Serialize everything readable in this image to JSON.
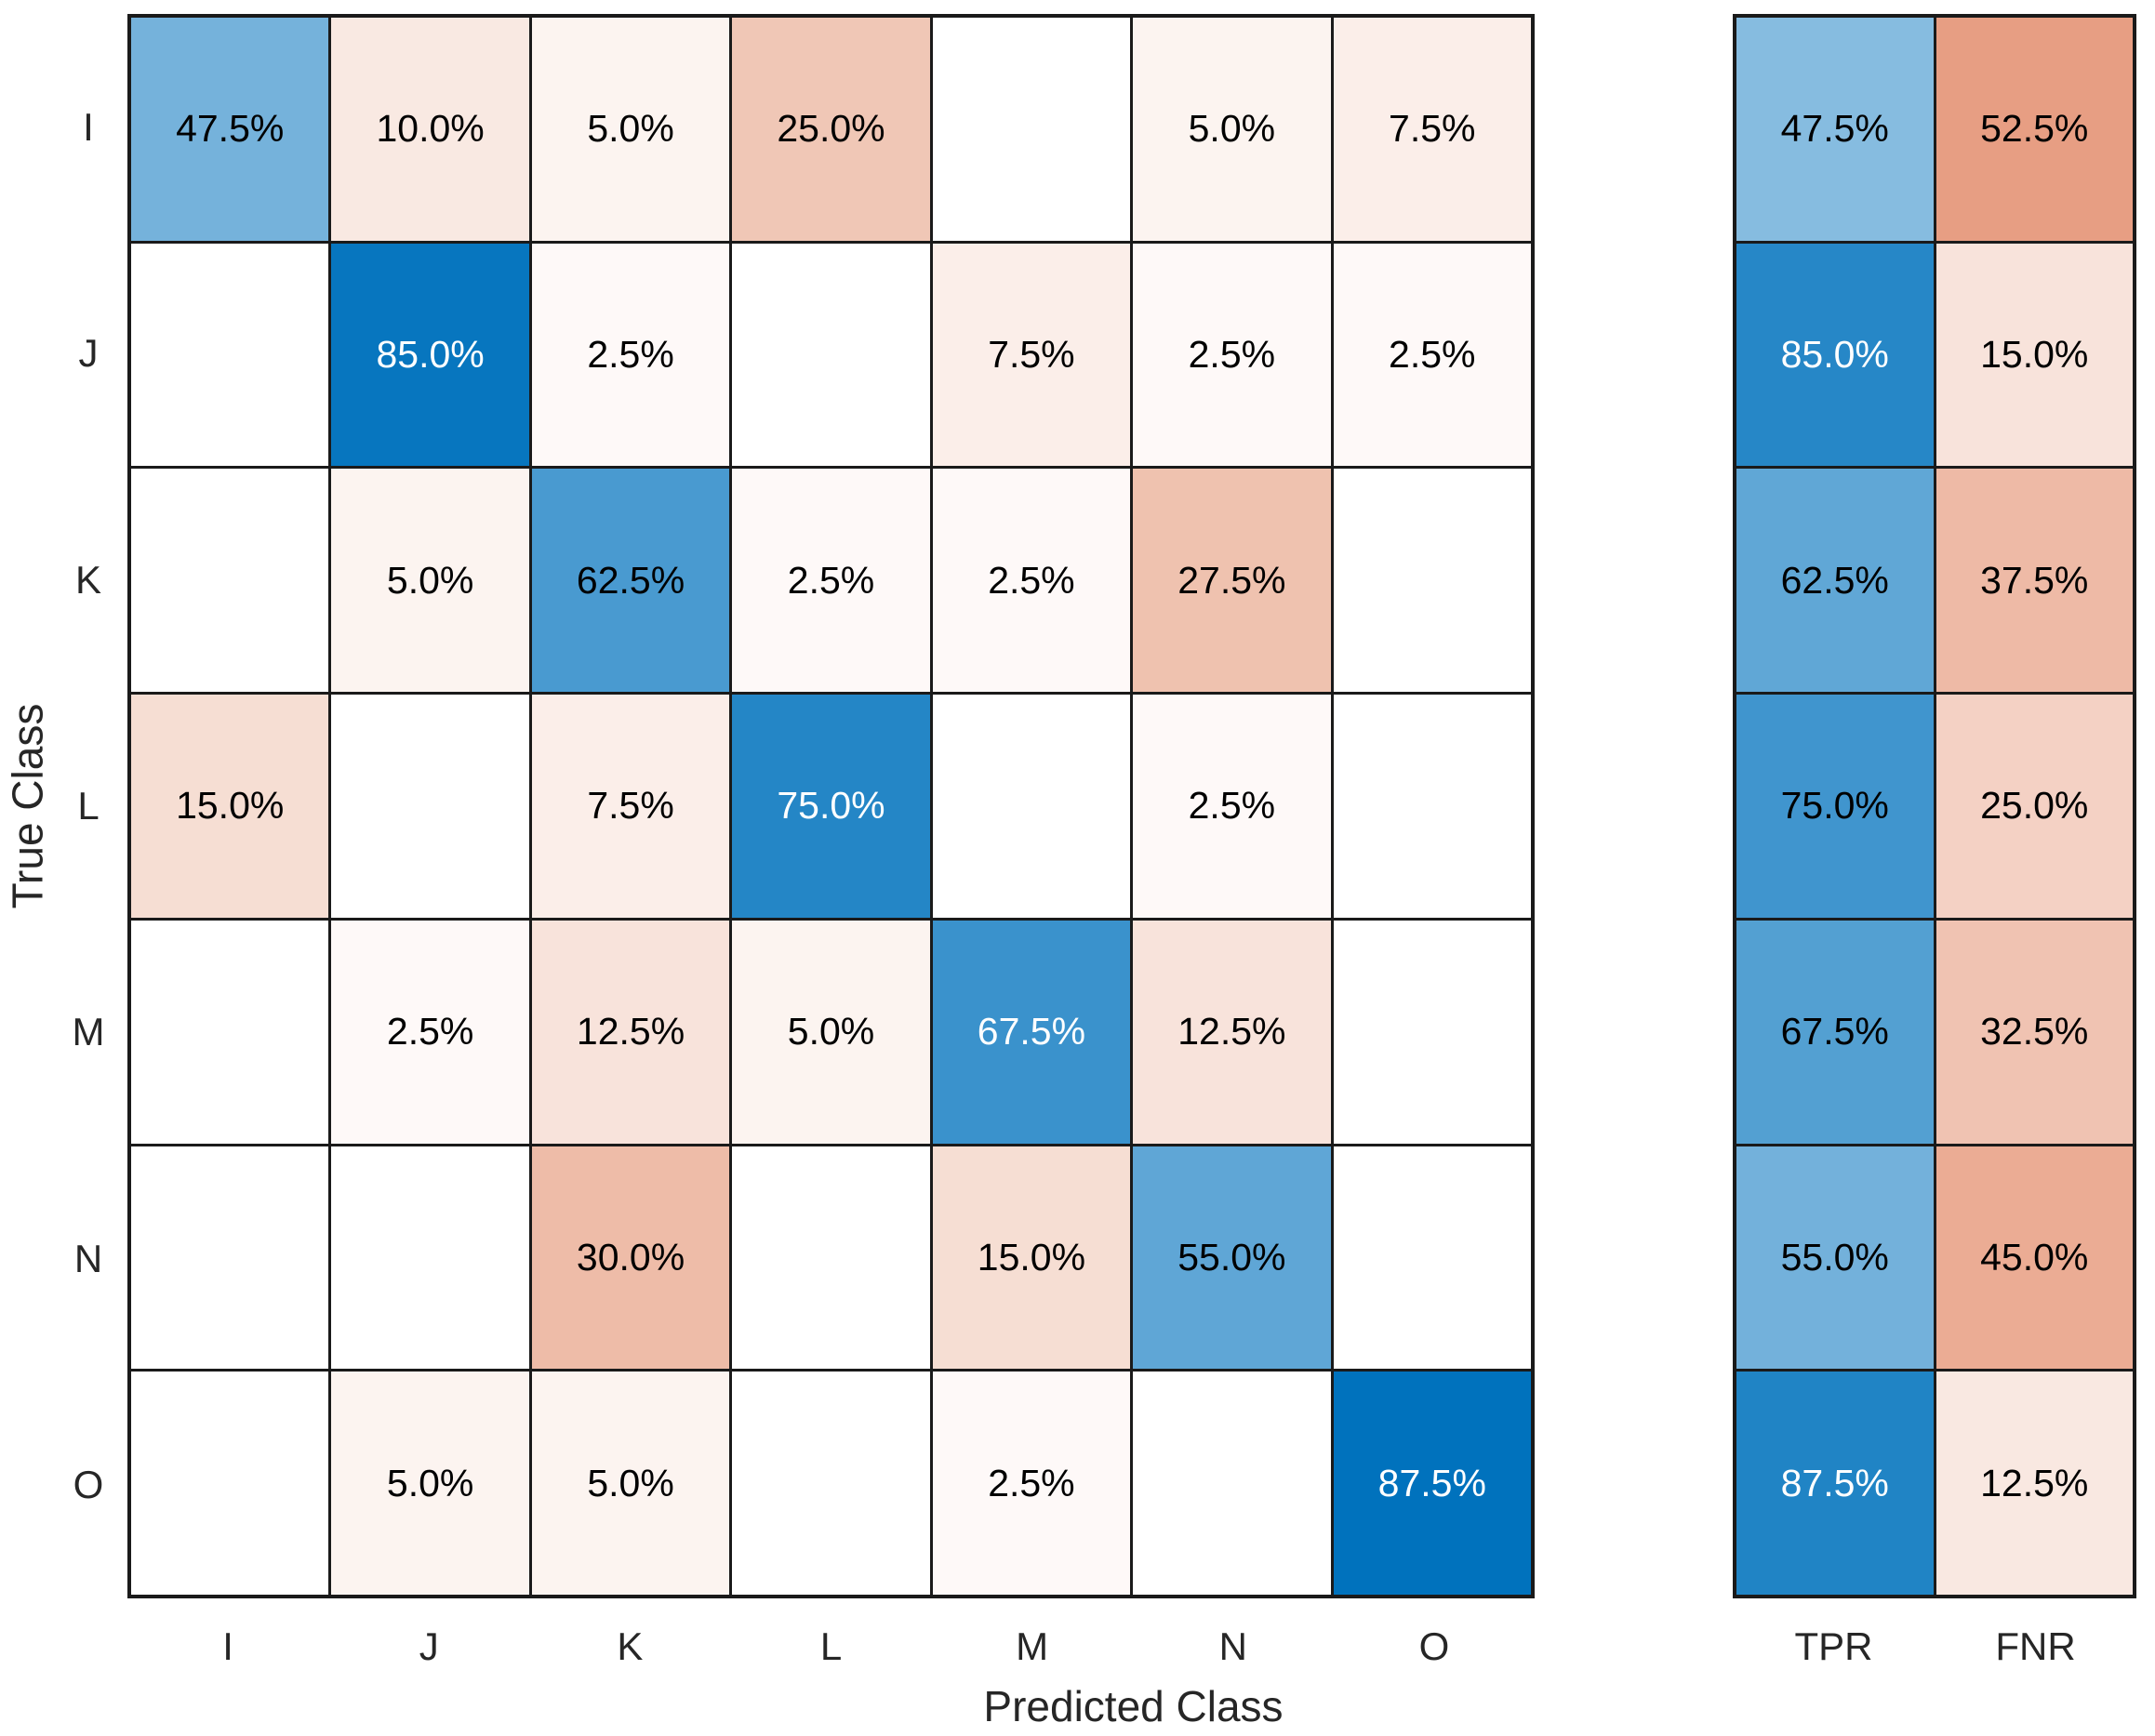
{
  "chart_data": {
    "type": "heatmap",
    "subtype": "confusion-matrix-with-row-summary",
    "x_label": "Predicted Class",
    "y_label": "True Class",
    "classes": [
      "I",
      "J",
      "K",
      "L",
      "M",
      "N",
      "O"
    ],
    "summary_columns": [
      "TPR",
      "FNR"
    ],
    "matrix_percent": [
      [
        47.5,
        10.0,
        5.0,
        25.0,
        null,
        5.0,
        7.5
      ],
      [
        null,
        85.0,
        2.5,
        null,
        7.5,
        2.5,
        2.5
      ],
      [
        null,
        5.0,
        62.5,
        2.5,
        2.5,
        27.5,
        null
      ],
      [
        15.0,
        null,
        7.5,
        75.0,
        null,
        2.5,
        null
      ],
      [
        null,
        2.5,
        12.5,
        5.0,
        67.5,
        12.5,
        null
      ],
      [
        null,
        null,
        30.0,
        null,
        15.0,
        55.0,
        null
      ],
      [
        null,
        5.0,
        5.0,
        null,
        2.5,
        null,
        87.5
      ]
    ],
    "tpr_percent": [
      47.5,
      85.0,
      62.5,
      75.0,
      67.5,
      55.0,
      87.5
    ],
    "fnr_percent": [
      52.5,
      15.0,
      37.5,
      25.0,
      32.5,
      45.0,
      12.5
    ],
    "value_format": "one-decimal-percent"
  },
  "render": {
    "diagonal_base_color": "#0072BD",
    "offdiagonal_base_color": "#CC3C00",
    "tpr_base_color": "#0072BD",
    "fnr_base_color": "#D24712",
    "grid_line_color": "#1a1a1a",
    "axis_text_color": "#262626",
    "cell_text_dark": "#000000",
    "cell_text_light": "#ffffff",
    "empty_cell_color": "#ffffff",
    "matrix_color_norm": 87.5,
    "summary_color_norm": 100,
    "matrix_white_text_min_alpha": 0.75,
    "summary_white_text_min_alpha": 0.8
  }
}
